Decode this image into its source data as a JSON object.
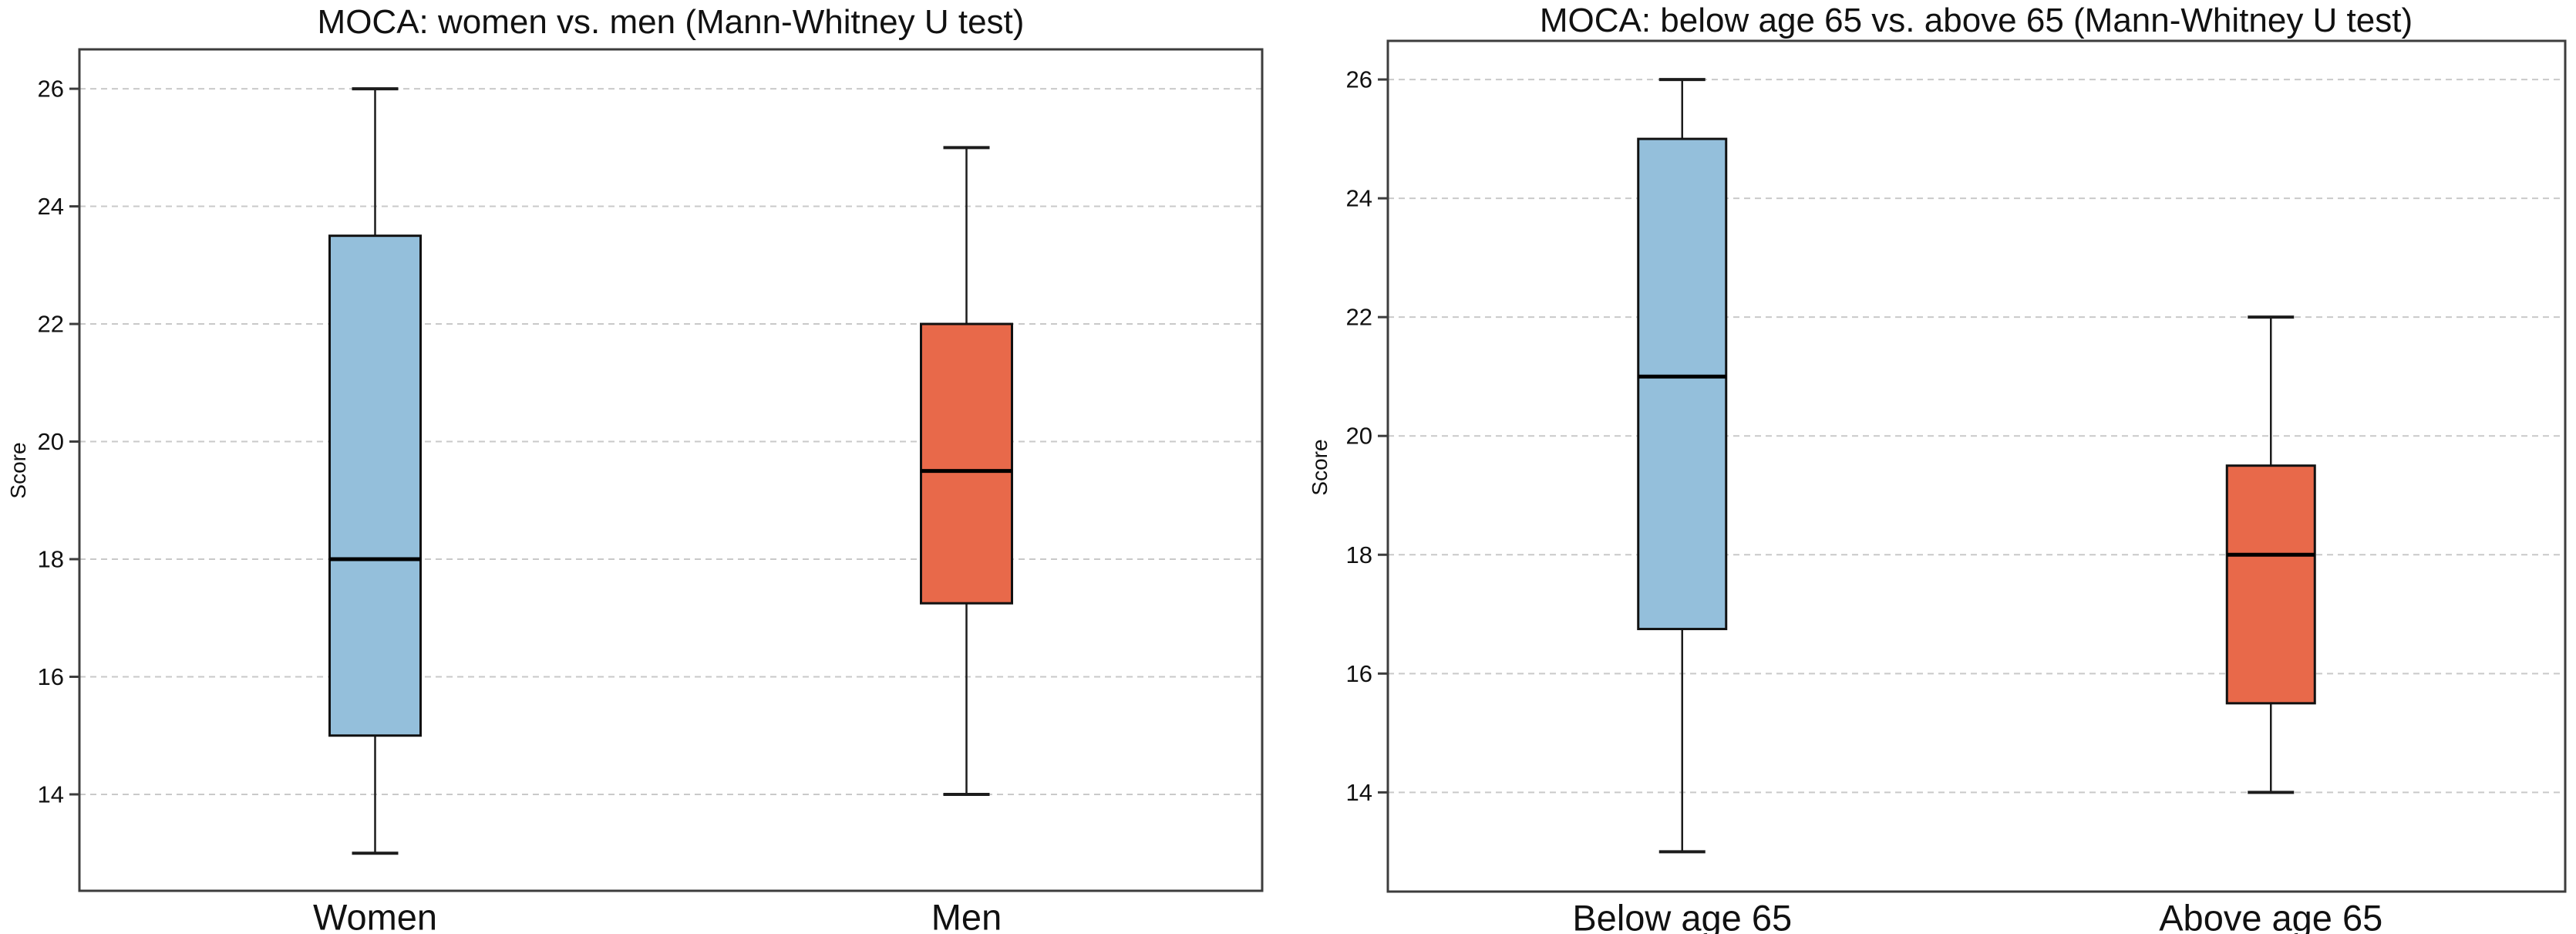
{
  "figure": {
    "background": "#ffffff"
  },
  "chart_data": [
    {
      "type": "box",
      "title": "MOCA: women vs. men (Mann-Whitney U test)",
      "ylabel": "Score",
      "xlabel": "",
      "yticks": [
        14,
        16,
        18,
        20,
        22,
        24,
        26
      ],
      "ylim": [
        12.36,
        26.67
      ],
      "grid": "horizontal-dashed",
      "legend": "none",
      "categories": [
        "Women",
        "Men"
      ],
      "series": [
        {
          "name": "Women",
          "whisker_low": 13,
          "q1": 15,
          "median": 18,
          "q3": 23.5,
          "whisker_high": 26,
          "outliers": [],
          "fill_color": "#94bfdb"
        },
        {
          "name": "Men",
          "whisker_low": 14,
          "q1": 17.25,
          "median": 19.5,
          "q3": 22,
          "whisker_high": 25,
          "outliers": [],
          "fill_color": "#e8694a"
        }
      ]
    },
    {
      "type": "box",
      "title": "MOCA: below age 65 vs. above 65 (Mann-Whitney U test)",
      "ylabel": "Score",
      "xlabel": "",
      "yticks": [
        14,
        16,
        18,
        20,
        22,
        24,
        26
      ],
      "ylim": [
        12.33,
        26.65
      ],
      "grid": "horizontal-dashed",
      "legend": "none",
      "categories": [
        "Below age 65",
        "Above age 65"
      ],
      "series": [
        {
          "name": "Below age 65",
          "whisker_low": 13,
          "q1": 16.75,
          "median": 21,
          "q3": 25,
          "whisker_high": 26,
          "outliers": [],
          "fill_color": "#94bfdb"
        },
        {
          "name": "Above age 65",
          "whisker_low": 14,
          "q1": 15.5,
          "median": 18,
          "q3": 19.5,
          "whisker_high": 22,
          "outliers": [],
          "fill_color": "#e8694a"
        }
      ]
    }
  ],
  "colors": {
    "box_blue": "#94bfdb",
    "box_orange": "#e8694a",
    "box_edge": "#111111",
    "median_line": "#000000",
    "whisker": "#1c1c1c",
    "gridline": "#c9c9c9",
    "spine": "#3d3d3d",
    "tick_text": "#111111"
  }
}
